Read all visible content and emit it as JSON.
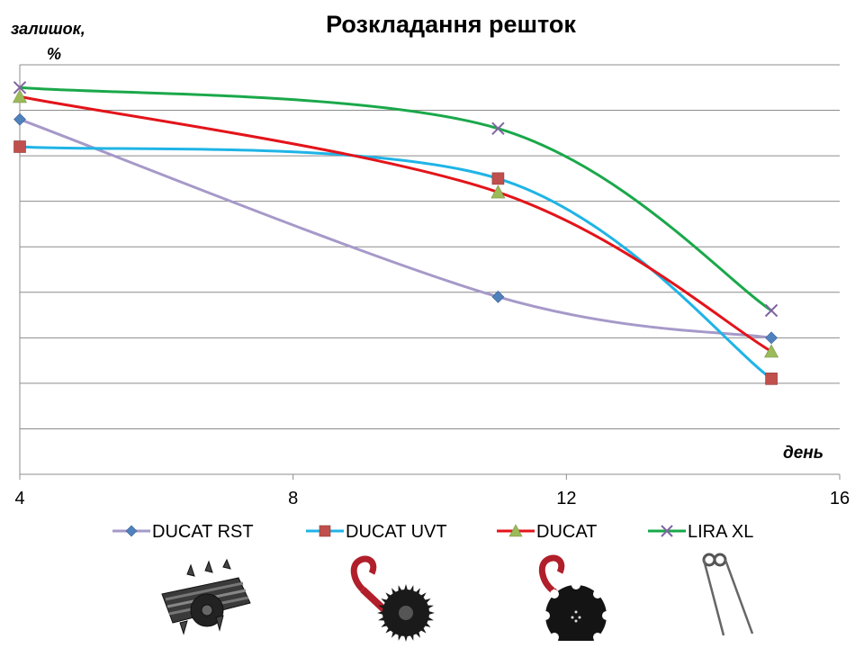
{
  "chart_data": {
    "type": "line",
    "title": "Розкладання решток",
    "ylabel": "залишок, %",
    "xlabel": "день",
    "xlim": [
      4,
      16
    ],
    "xticks": [
      4,
      8,
      12,
      16
    ],
    "ylim": [
      0,
      9
    ],
    "grid": true,
    "legend_position": "bottom",
    "series": [
      {
        "name": "DUCAT RST",
        "color": "#a699c9",
        "marker": "diamond",
        "marker_color": "#4f81bd",
        "points": [
          {
            "x": 4,
            "y": 7.8
          },
          {
            "x": 11,
            "y": 3.9
          },
          {
            "x": 15,
            "y": 3.0
          }
        ]
      },
      {
        "name": "DUCAT UVT",
        "color": "#1fb4e6",
        "marker": "square",
        "marker_color": "#c0504d",
        "points": [
          {
            "x": 4,
            "y": 7.2
          },
          {
            "x": 11,
            "y": 6.5
          },
          {
            "x": 15,
            "y": 2.1
          }
        ]
      },
      {
        "name": "DUCAT",
        "color": "#e3141a",
        "marker": "triangle",
        "marker_color": "#9bbb59",
        "points": [
          {
            "x": 4,
            "y": 8.3
          },
          {
            "x": 11,
            "y": 6.2
          },
          {
            "x": 15,
            "y": 2.7
          }
        ]
      },
      {
        "name": "LIRA XL",
        "color": "#1aa84a",
        "marker": "x",
        "marker_color": "#8064a2",
        "points": [
          {
            "x": 4,
            "y": 8.5
          },
          {
            "x": 11,
            "y": 7.6
          },
          {
            "x": 15,
            "y": 3.6
          }
        ]
      }
    ]
  },
  "tool_icons": [
    "rotary-cage-roller-icon",
    "spiked-disc-tine-icon",
    "notched-disc-tine-icon",
    "spring-tine-harrow-icon"
  ]
}
